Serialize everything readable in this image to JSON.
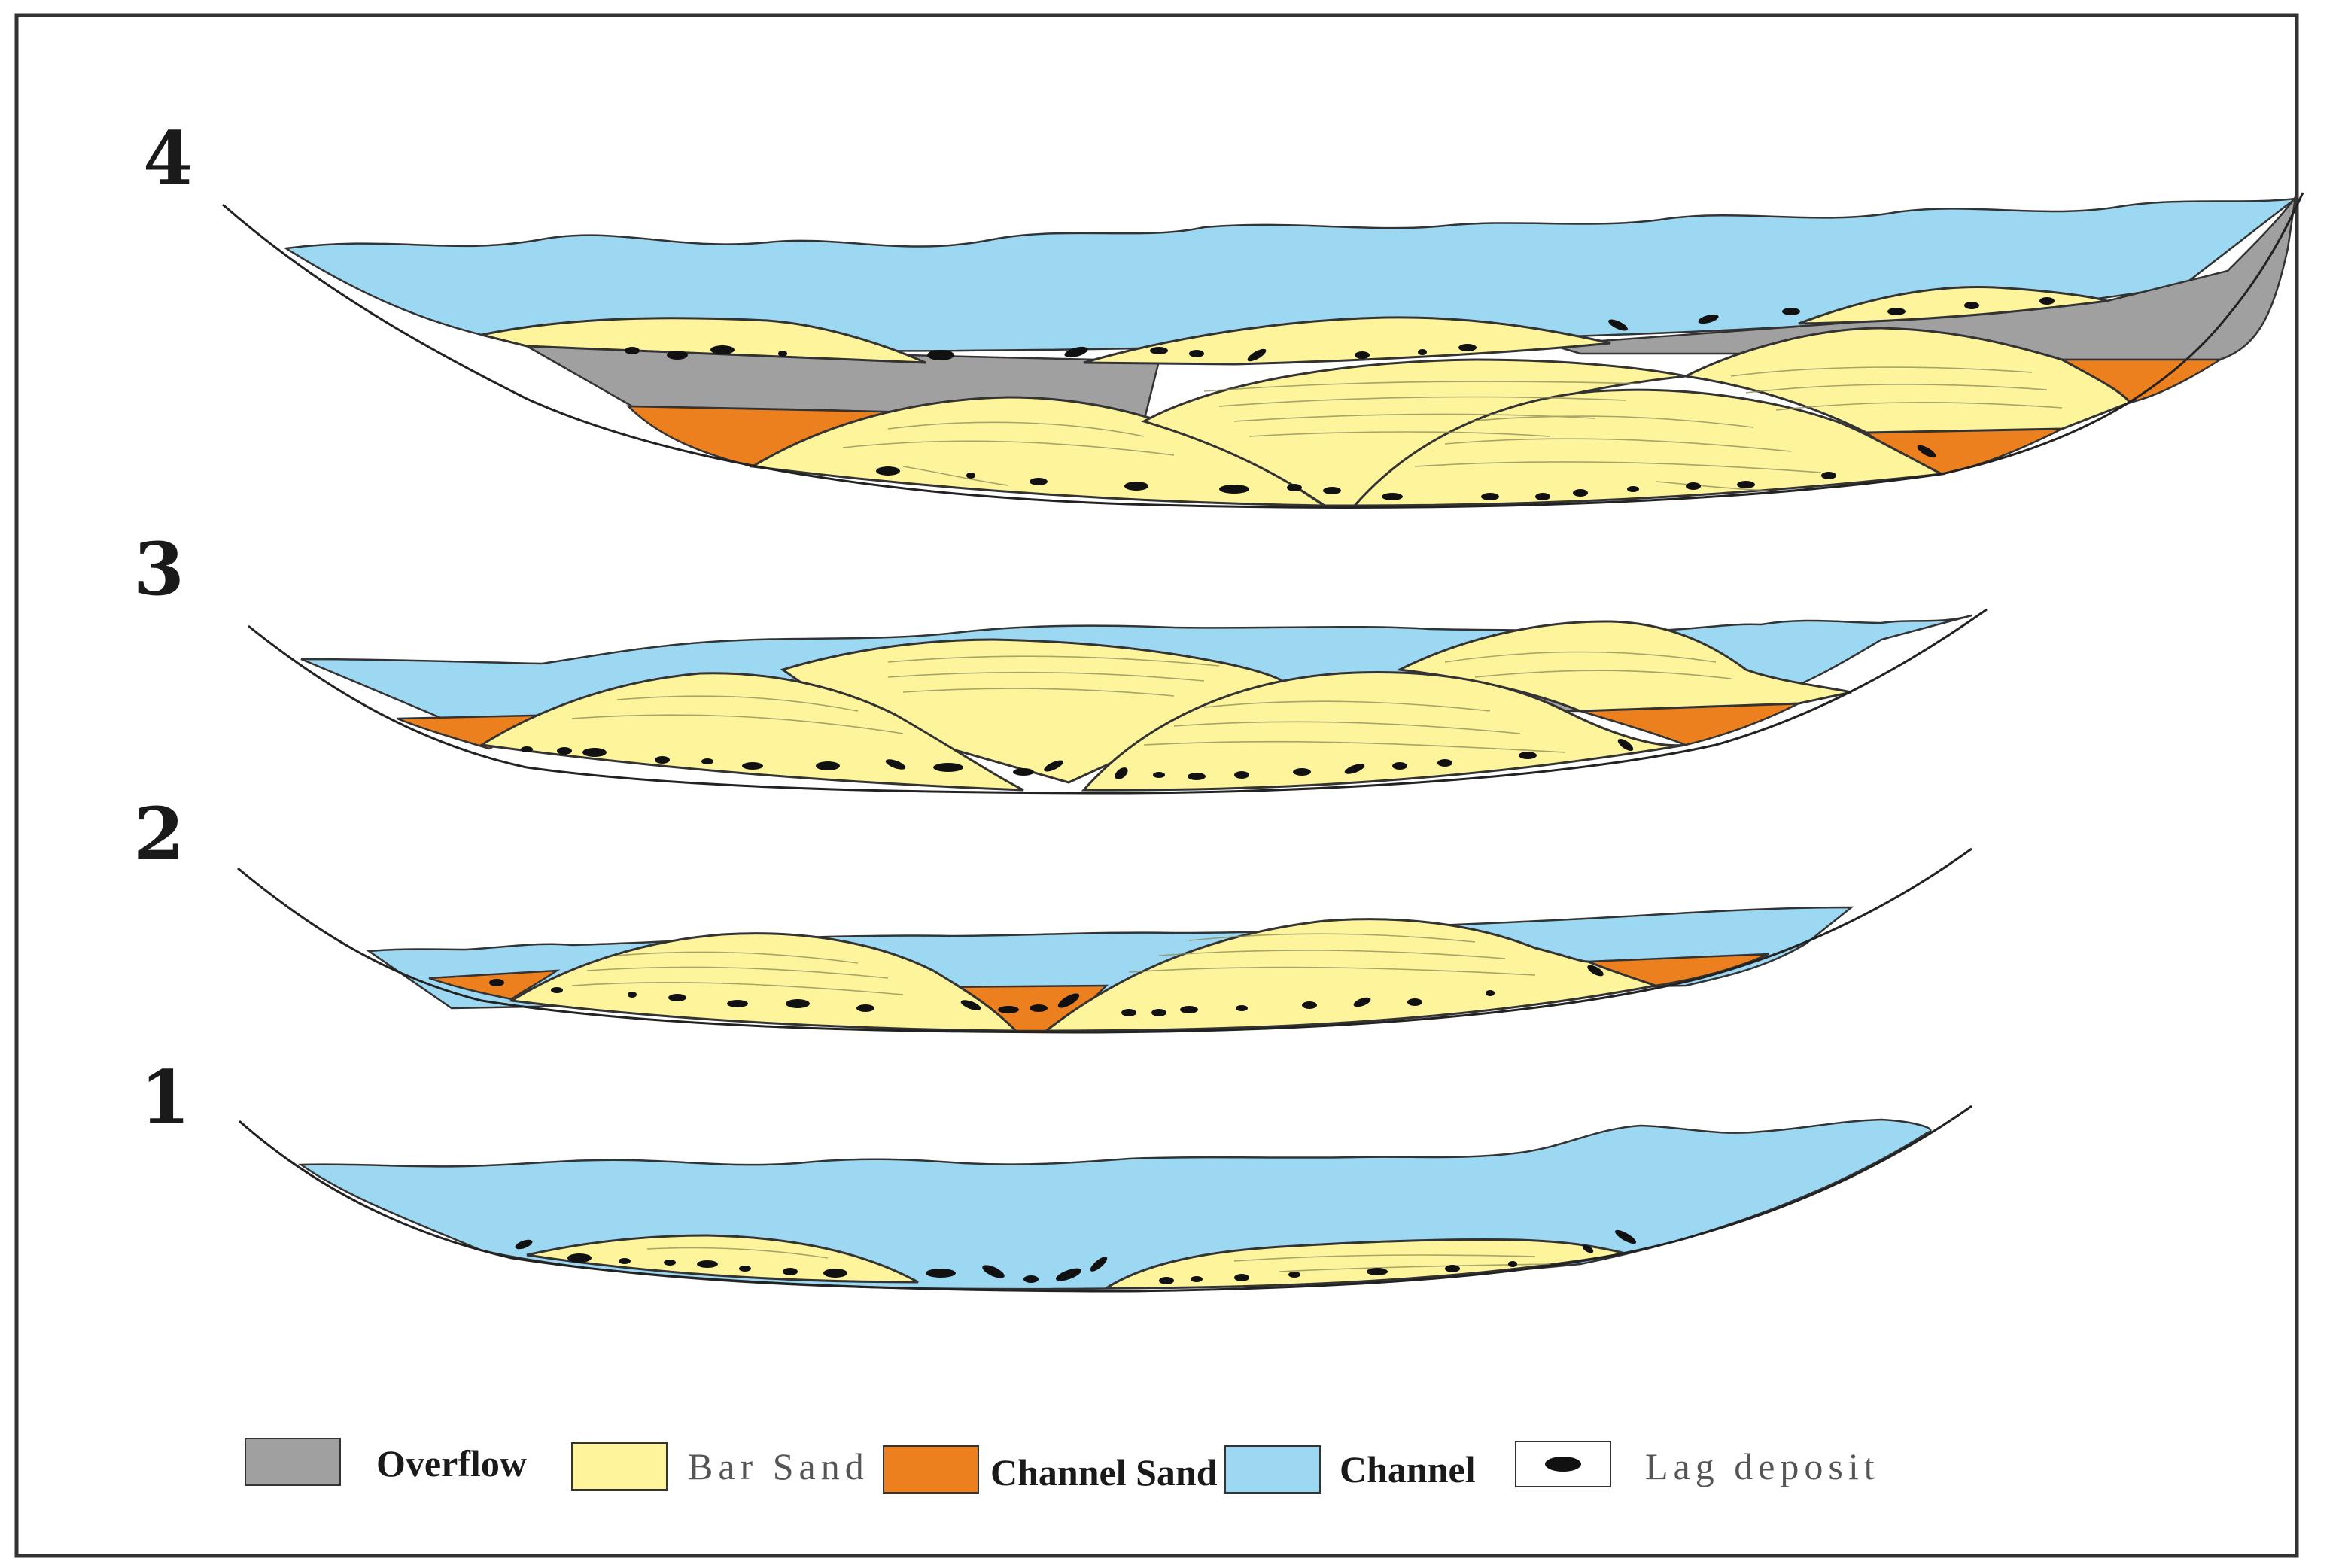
{
  "stages": [
    {
      "id": "stage-1",
      "label": "1"
    },
    {
      "id": "stage-2",
      "label": "2"
    },
    {
      "id": "stage-3",
      "label": "3"
    },
    {
      "id": "stage-4",
      "label": "4"
    }
  ],
  "legend": [
    {
      "key": "overflow",
      "label": "Overflow",
      "color": "#a0a0a0",
      "style": "bold"
    },
    {
      "key": "bar-sand",
      "label": "Bar Sand",
      "color": "#fef49c",
      "style": "spaced"
    },
    {
      "key": "channel-sand",
      "label": "Channel Sand",
      "color": "#ec7f1e",
      "style": "bold"
    },
    {
      "key": "channel",
      "label": "Channel",
      "color": "#9dd8f3",
      "style": "bold"
    },
    {
      "key": "lag-deposit",
      "label": "Lag deposit",
      "color": "#111111",
      "style": "spaced"
    }
  ],
  "colors": {
    "overflow": "#a0a0a0",
    "bar_sand": "#fef49c",
    "channel_sand": "#ec7f1e",
    "channel": "#9dd8f3",
    "lag": "#111111",
    "frame": "#333333"
  }
}
